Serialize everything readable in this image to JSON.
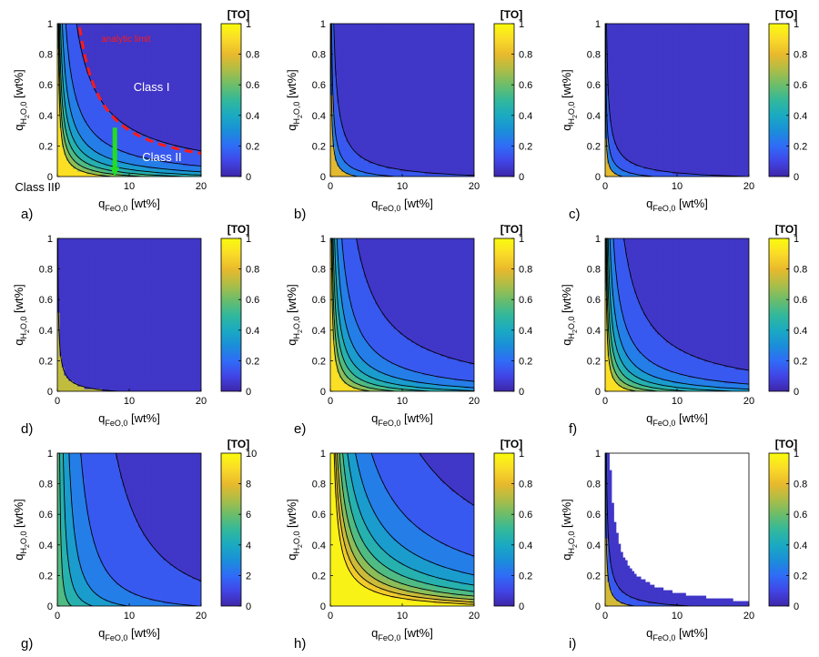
{
  "figure": {
    "colors": {
      "viridis_like": [
        "#3e26a8",
        "#4145e6",
        "#2f6cf7",
        "#1a8fd8",
        "#1aaac2",
        "#33b89a",
        "#6cbd6a",
        "#afbd46",
        "#e9b92c",
        "#fadc28",
        "#f9fb0e"
      ],
      "axis": "#000000",
      "annotation_red": "#ff1a1a",
      "annotation_green": "#22dd22",
      "annotation_white": "#ffffff"
    }
  },
  "chart_data": [
    {
      "panel": "a)",
      "type": "contour",
      "xlabel": "q",
      "xlabel_sub": "FeO,0",
      "xlabel_unit": "[wt%]",
      "ylabel": "q",
      "ylabel_sub1": "H",
      "ylabel_sub2": "2",
      "ylabel_sub3": "O,0",
      "ylabel_unit": "[wt%]",
      "xlim": [
        0,
        20
      ],
      "ylim": [
        0,
        1
      ],
      "xticks": [
        "0",
        "10",
        "20"
      ],
      "yticks": [
        "0",
        "0.2",
        "0.4",
        "0.6",
        "0.8",
        "1"
      ],
      "colorbar": {
        "title": "[TO]",
        "min": 0,
        "max": 1,
        "ticks": [
          "0",
          "0.2",
          "0.4",
          "0.6",
          "0.8",
          "1"
        ]
      },
      "contour_levels": [
        0.1,
        0.2,
        0.3,
        0.4,
        0.5,
        0.6,
        0.7
      ],
      "field": {
        "a": 1.0,
        "c": 0.28,
        "p": 1.25
      },
      "annotations": {
        "analytic_limit_label": "analytic limit",
        "class1": "Class I",
        "class2": "Class II",
        "class3": "Class III"
      },
      "analytic_limit_curve": {
        "c": 4.2,
        "p": 1.0
      },
      "class_marker_x": 8
    },
    {
      "panel": "b)",
      "type": "contour",
      "xlabel": "q",
      "xlabel_sub": "FeO,0",
      "xlabel_unit": "[wt%]",
      "ylabel": "q",
      "ylabel_sub1": "H",
      "ylabel_sub2": "2",
      "ylabel_sub3": "O,0",
      "ylabel_unit": "[wt%]",
      "xlim": [
        0,
        20
      ],
      "ylim": [
        0,
        1
      ],
      "xticks": [
        "0",
        "10",
        "20"
      ],
      "yticks": [
        "0",
        "0.2",
        "0.4",
        "0.6",
        "0.8",
        "1"
      ],
      "colorbar": {
        "title": "[TO]",
        "min": 0,
        "max": 1,
        "ticks": [
          "0",
          "0.2",
          "0.4",
          "0.6",
          "0.8",
          "1"
        ]
      },
      "contour_levels": [
        0.1,
        0.2,
        0.3
      ],
      "field": {
        "a": 0.48,
        "c": 0.12,
        "p": 1.2
      }
    },
    {
      "panel": "c)",
      "type": "contour",
      "xlabel": "q",
      "xlabel_sub": "FeO,0",
      "xlabel_unit": "[wt%]",
      "ylabel": "q",
      "ylabel_sub1": "H",
      "ylabel_sub2": "2",
      "ylabel_sub3": "O,0",
      "ylabel_unit": "[wt%]",
      "xlim": [
        0,
        20
      ],
      "ylim": [
        0,
        1
      ],
      "xticks": [
        "0",
        "10",
        "20"
      ],
      "yticks": [
        "0",
        "0.2",
        "0.4",
        "0.6",
        "0.8",
        "1"
      ],
      "colorbar": {
        "title": "[TO]",
        "min": 0,
        "max": 1,
        "ticks": [
          "0",
          "0.2",
          "0.4",
          "0.6",
          "0.8",
          "1"
        ]
      },
      "contour_levels": [
        0.1,
        0.2,
        0.3
      ],
      "field": {
        "a": 0.42,
        "c": 0.06,
        "p": 1.4
      }
    },
    {
      "panel": "d)",
      "type": "contour",
      "xlabel": "q",
      "xlabel_sub": "FeO,0",
      "xlabel_unit": "[wt%]",
      "ylabel": "q",
      "ylabel_sub1": "H",
      "ylabel_sub2": "2",
      "ylabel_sub3": "O,0",
      "ylabel_unit": "[wt%]",
      "xlim": [
        0,
        20
      ],
      "ylim": [
        0,
        1
      ],
      "xticks": [
        "0",
        "10",
        "20"
      ],
      "yticks": [
        "0",
        "0.2",
        "0.4",
        "0.6",
        "0.8",
        "1"
      ],
      "colorbar": {
        "title": "[TO]",
        "min": 0,
        "max": 1,
        "ticks": [
          "0",
          "0.2",
          "0.4",
          "0.6",
          "0.8",
          "1"
        ]
      },
      "contour_levels": [
        0.1
      ],
      "field": {
        "a": 0.25,
        "c": 0.04,
        "p": 1.5
      }
    },
    {
      "panel": "e)",
      "type": "contour",
      "xlabel": "q",
      "xlabel_sub": "FeO,0",
      "xlabel_unit": "[wt%]",
      "ylabel": "q",
      "ylabel_sub1": "H",
      "ylabel_sub2": "2",
      "ylabel_sub3": "O,0",
      "ylabel_unit": "[wt%]",
      "xlim": [
        0,
        20
      ],
      "ylim": [
        0,
        1
      ],
      "xticks": [
        "0",
        "10",
        "20"
      ],
      "yticks": [
        "0",
        "0.2",
        "0.4",
        "0.6",
        "0.8",
        "1"
      ],
      "colorbar": {
        "title": "[TO]",
        "min": 0,
        "max": 1,
        "ticks": [
          "0",
          "0.2",
          "0.4",
          "0.6",
          "0.8",
          "1"
        ]
      },
      "contour_levels": [
        0.1,
        0.2,
        0.3,
        0.4,
        0.5,
        0.6,
        0.7
      ],
      "field": {
        "a": 0.95,
        "c": 0.4,
        "p": 1.1
      }
    },
    {
      "panel": "f)",
      "type": "contour",
      "xlabel": "q",
      "xlabel_sub": "FeO,0",
      "xlabel_unit": "[wt%]",
      "ylabel": "q",
      "ylabel_sub1": "H",
      "ylabel_sub2": "2",
      "ylabel_sub3": "O,0",
      "ylabel_unit": "[wt%]",
      "xlim": [
        0,
        20
      ],
      "ylim": [
        0,
        1
      ],
      "xticks": [
        "0",
        "10",
        "20"
      ],
      "yticks": [
        "0",
        "0.2",
        "0.4",
        "0.6",
        "0.8",
        "1"
      ],
      "colorbar": {
        "title": "[TO]",
        "min": 0,
        "max": 1,
        "ticks": [
          "0",
          "0.2",
          "0.4",
          "0.6",
          "0.8",
          "1"
        ]
      },
      "contour_levels": [
        0.1,
        0.2,
        0.3,
        0.4,
        0.5,
        0.6,
        0.7
      ],
      "field": {
        "a": 0.92,
        "c": 0.3,
        "p": 1.15
      }
    },
    {
      "panel": "g)",
      "type": "contour",
      "xlabel": "q",
      "xlabel_sub": "FeO,0",
      "xlabel_unit": "[wt%]",
      "ylabel": "q",
      "ylabel_sub1": "H",
      "ylabel_sub2": "2",
      "ylabel_sub3": "O,0",
      "ylabel_unit": "[wt%]",
      "xlim": [
        0,
        20
      ],
      "ylim": [
        0,
        1
      ],
      "xticks": [
        "0",
        "10",
        "20"
      ],
      "yticks": [
        "0",
        "0.2",
        "0.4",
        "0.6",
        "0.8",
        "1"
      ],
      "colorbar": {
        "title": "[TO]",
        "min": 0,
        "max": 10,
        "ticks": [
          "0",
          "2",
          "4",
          "6",
          "8",
          "10"
        ]
      },
      "contour_levels": [
        1,
        2,
        3,
        4,
        5,
        6
      ],
      "field": {
        "a": 6.0,
        "c": 1.5,
        "p": 0.55
      }
    },
    {
      "panel": "h)",
      "type": "contour",
      "xlabel": "q",
      "xlabel_sub": "FeO,0",
      "xlabel_unit": "[wt%]",
      "ylabel": "q",
      "ylabel_sub1": "H",
      "ylabel_sub2": "2",
      "ylabel_sub3": "O,0",
      "ylabel_unit": "[wt%]",
      "xlim": [
        0,
        20
      ],
      "ylim": [
        0,
        1
      ],
      "xticks": [
        "0",
        "10",
        "20"
      ],
      "yticks": [
        "0",
        "0.2",
        "0.4",
        "0.6",
        "0.8",
        "1"
      ],
      "colorbar": {
        "title": "[TO]",
        "min": 0,
        "max": 1,
        "ticks": [
          "0",
          "0.2",
          "0.4",
          "0.6",
          "0.8",
          "1"
        ]
      },
      "contour_levels": [
        0.1,
        0.2,
        0.3,
        0.4,
        0.5,
        0.6,
        0.7,
        0.8,
        0.9
      ],
      "field": {
        "a": 1.4,
        "c": 0.9,
        "p": 1.2
      }
    },
    {
      "panel": "i)",
      "type": "contour",
      "xlabel": "q",
      "xlabel_sub": "FeO,0",
      "xlabel_unit": "[wt%]",
      "ylabel": "q",
      "ylabel_sub1": "H",
      "ylabel_sub2": "2",
      "ylabel_sub3": "O,0",
      "ylabel_unit": "[wt%]",
      "xlim": [
        0,
        20
      ],
      "ylim": [
        0,
        1
      ],
      "xticks": [
        "0",
        "10",
        "20"
      ],
      "yticks": [
        "0",
        "0.2",
        "0.4",
        "0.6",
        "0.8",
        "1"
      ],
      "colorbar": {
        "title": "[TO]",
        "min": 0,
        "max": 1,
        "ticks": [
          "0",
          "0.2",
          "0.4",
          "0.6",
          "0.8",
          "1"
        ]
      },
      "contour_levels": [
        0.1,
        0.2
      ],
      "field": {
        "a": 0.42,
        "c": 0.05,
        "p": 1.3
      },
      "blank_region_threshold": 0.03
    }
  ]
}
